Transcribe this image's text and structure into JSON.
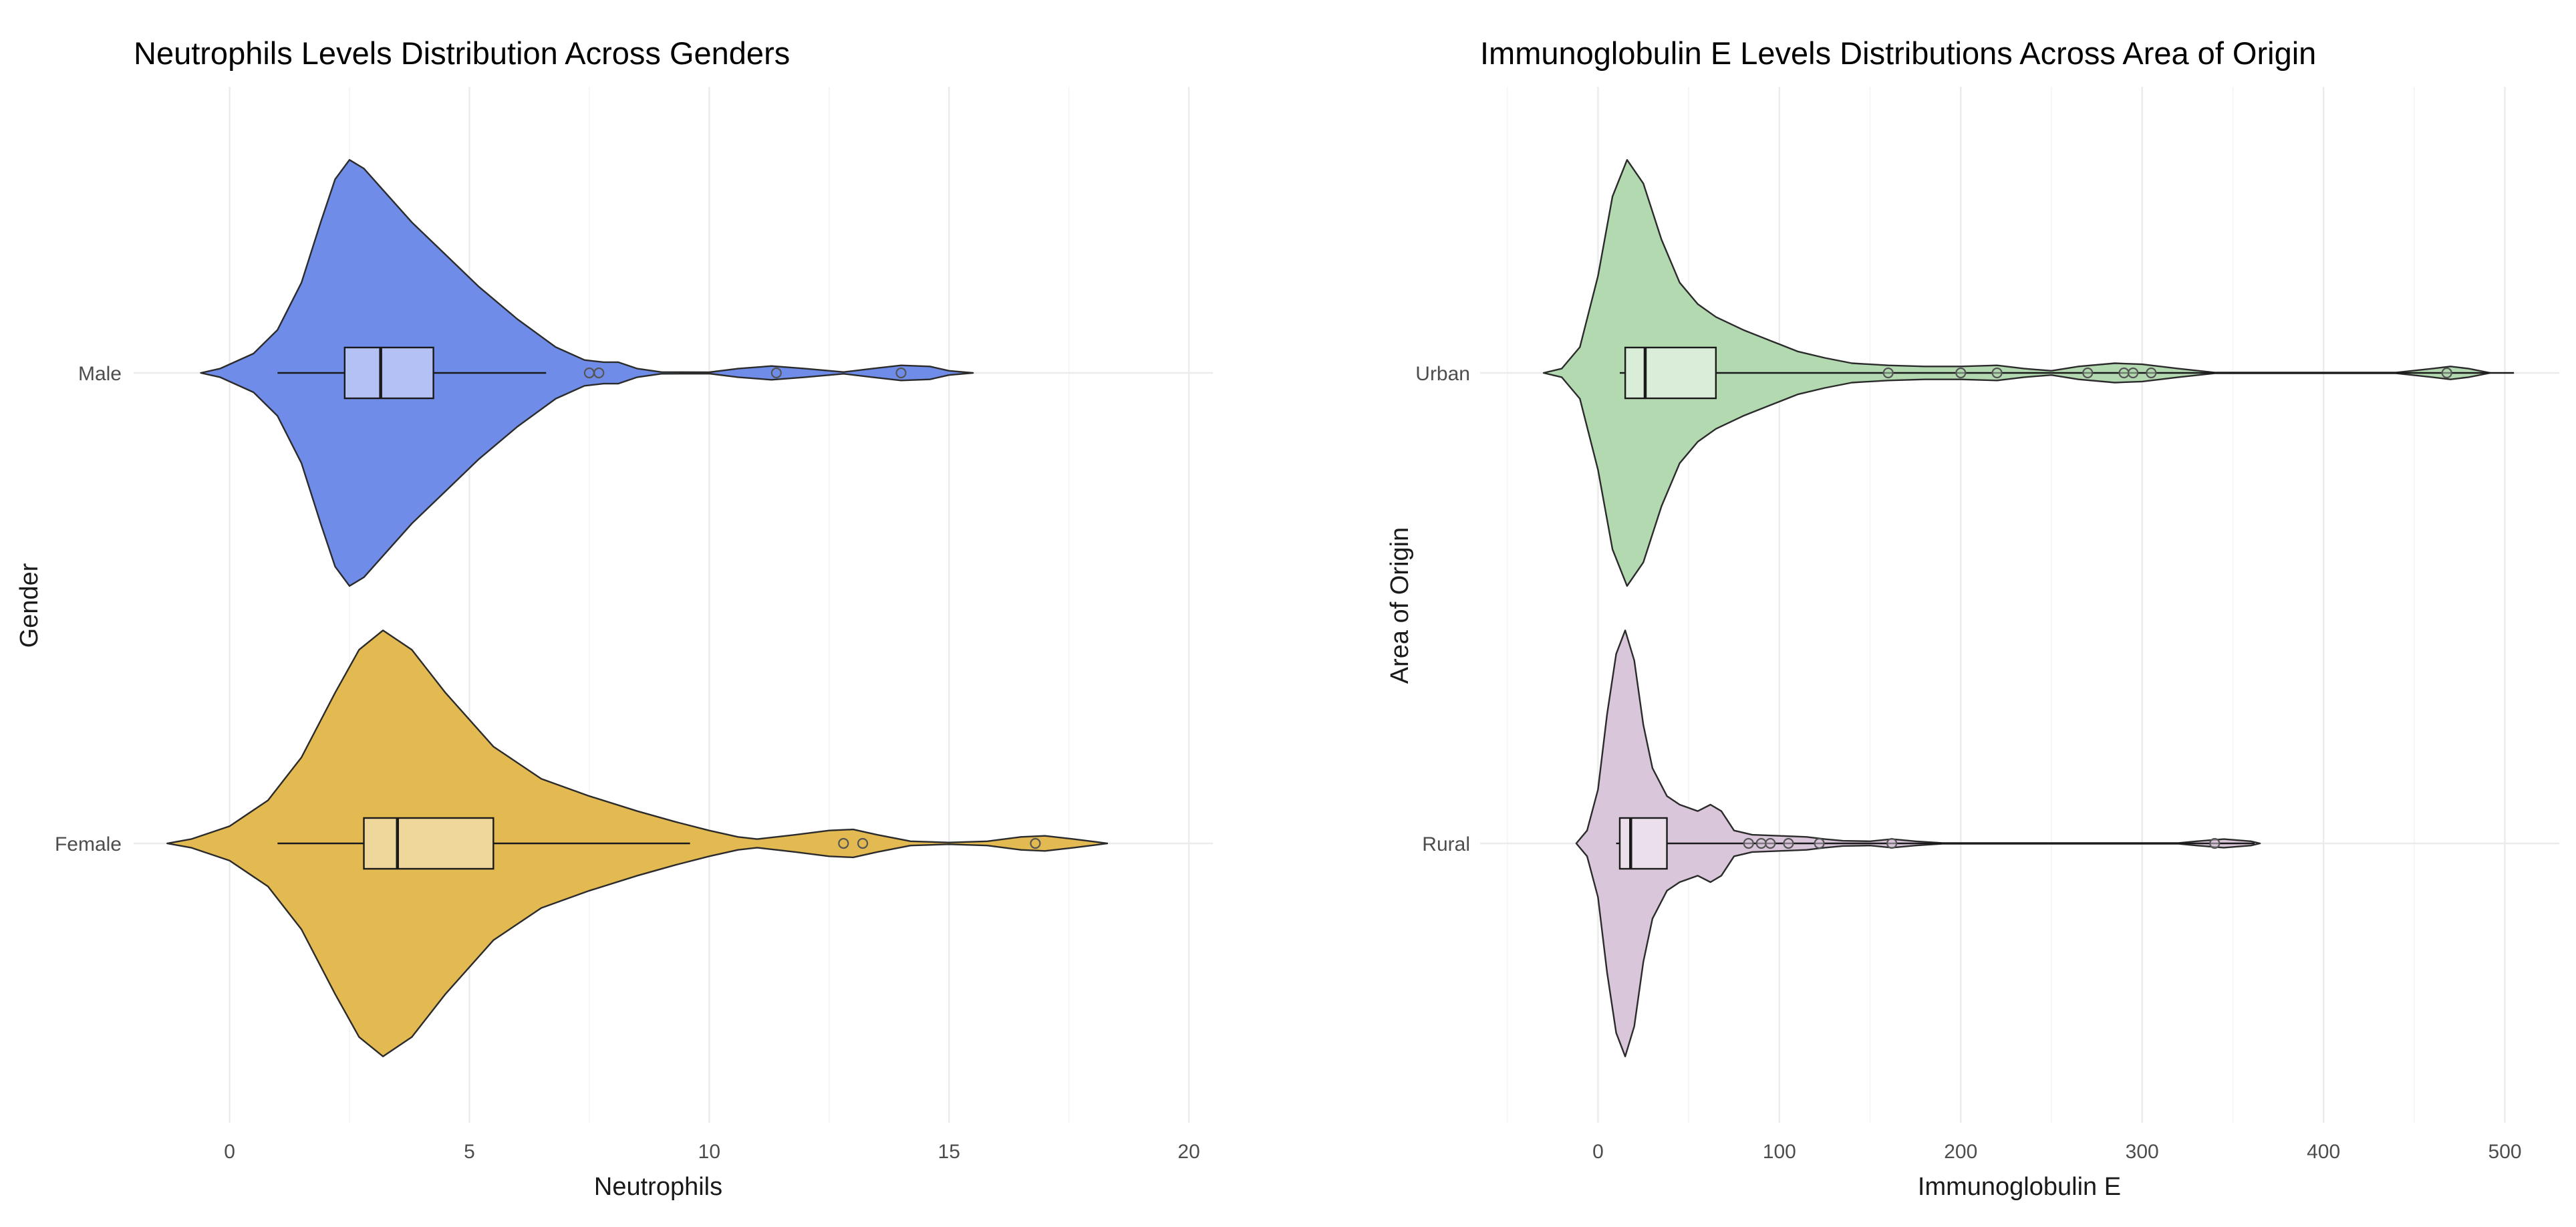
{
  "chart_data": [
    {
      "type": "violin",
      "title": "Neutrophils Levels Distribution Across Genders",
      "xlabel": "Neutrophils",
      "ylabel": "Gender",
      "xlim": [
        -2,
        20.5
      ],
      "x_ticks": [
        0,
        5,
        10,
        15,
        20
      ],
      "x_tick_labels": [
        "0",
        "5",
        "10",
        "15",
        "20"
      ],
      "categories": [
        "Male",
        "Female"
      ],
      "grid": true,
      "series": [
        {
          "name": "Male",
          "fill": "#6f8ce8",
          "box_fill": "#b3c1f4",
          "violin_outline": [
            [
              -0.6,
              0.0
            ],
            [
              -0.2,
              0.02
            ],
            [
              0.5,
              0.09
            ],
            [
              1.0,
              0.2
            ],
            [
              1.5,
              0.42
            ],
            [
              1.9,
              0.7
            ],
            [
              2.2,
              0.9
            ],
            [
              2.5,
              0.99
            ],
            [
              2.8,
              0.95
            ],
            [
              3.2,
              0.85
            ],
            [
              3.8,
              0.7
            ],
            [
              4.5,
              0.55
            ],
            [
              5.2,
              0.4
            ],
            [
              6.0,
              0.25
            ],
            [
              6.8,
              0.12
            ],
            [
              7.4,
              0.06
            ],
            [
              7.8,
              0.05
            ],
            [
              8.1,
              0.05
            ],
            [
              8.5,
              0.02
            ],
            [
              9.0,
              0.004
            ],
            [
              10.0,
              0.003
            ],
            [
              10.6,
              0.02
            ],
            [
              11.3,
              0.032
            ],
            [
              12.0,
              0.02
            ],
            [
              12.8,
              0.004
            ],
            [
              13.4,
              0.02
            ],
            [
              14.0,
              0.035
            ],
            [
              14.6,
              0.03
            ],
            [
              15.0,
              0.01
            ],
            [
              15.5,
              0.0
            ]
          ],
          "box": {
            "whisker_low": 1.0,
            "q1": 2.4,
            "median": 3.15,
            "q3": 4.25,
            "whisker_high": 6.6
          },
          "outliers": [
            7.5,
            7.7,
            11.4,
            14.0
          ]
        },
        {
          "name": "Female",
          "fill": "#e3ba52",
          "box_fill": "#efd79b",
          "violin_outline": [
            [
              -1.3,
              0.0
            ],
            [
              -0.8,
              0.02
            ],
            [
              0.0,
              0.08
            ],
            [
              0.8,
              0.2
            ],
            [
              1.5,
              0.4
            ],
            [
              2.2,
              0.7
            ],
            [
              2.7,
              0.9
            ],
            [
              3.2,
              0.99
            ],
            [
              3.8,
              0.9
            ],
            [
              4.5,
              0.7
            ],
            [
              5.5,
              0.45
            ],
            [
              6.5,
              0.3
            ],
            [
              7.5,
              0.22
            ],
            [
              8.5,
              0.15
            ],
            [
              9.3,
              0.1
            ],
            [
              10.0,
              0.06
            ],
            [
              10.6,
              0.03
            ],
            [
              11.0,
              0.02
            ],
            [
              11.8,
              0.04
            ],
            [
              12.5,
              0.06
            ],
            [
              13.0,
              0.065
            ],
            [
              13.5,
              0.04
            ],
            [
              14.2,
              0.01
            ],
            [
              15.0,
              0.004
            ],
            [
              15.8,
              0.01
            ],
            [
              16.5,
              0.03
            ],
            [
              17.0,
              0.035
            ],
            [
              17.6,
              0.02
            ],
            [
              18.1,
              0.006
            ],
            [
              18.3,
              0.0
            ]
          ],
          "box": {
            "whisker_low": 1.0,
            "q1": 2.8,
            "median": 3.5,
            "q3": 5.5,
            "whisker_high": 9.6
          },
          "outliers": [
            12.8,
            13.2,
            16.8
          ]
        }
      ]
    },
    {
      "type": "violin",
      "title": "Immunoglobulin E Levels Distributions Across Area of Origin",
      "xlabel": "Immunoglobulin E",
      "ylabel": "Area of Origin",
      "xlim": [
        -65,
        530
      ],
      "x_ticks": [
        0,
        100,
        200,
        300,
        400,
        500
      ],
      "x_tick_labels": [
        "0",
        "100",
        "200",
        "300",
        "400",
        "500"
      ],
      "categories": [
        "Urban",
        "Rural"
      ],
      "grid": true,
      "series": [
        {
          "name": "Urban",
          "fill": "#b3d9b1",
          "box_fill": "#d9edd8",
          "violin_outline": [
            [
              -30.0,
              0.0
            ],
            [
              -20.0,
              0.02
            ],
            [
              -10.0,
              0.12
            ],
            [
              0.0,
              0.45
            ],
            [
              8.0,
              0.82
            ],
            [
              16.0,
              0.99
            ],
            [
              25.0,
              0.88
            ],
            [
              35.0,
              0.62
            ],
            [
              45.0,
              0.42
            ],
            [
              55.0,
              0.32
            ],
            [
              65.0,
              0.26
            ],
            [
              80.0,
              0.2
            ],
            [
              95.0,
              0.15
            ],
            [
              110.0,
              0.1
            ],
            [
              125.0,
              0.07
            ],
            [
              140.0,
              0.045
            ],
            [
              160.0,
              0.035
            ],
            [
              180.0,
              0.03
            ],
            [
              200.0,
              0.03
            ],
            [
              220.0,
              0.035
            ],
            [
              235.0,
              0.02
            ],
            [
              250.0,
              0.01
            ],
            [
              265.0,
              0.03
            ],
            [
              285.0,
              0.045
            ],
            [
              300.0,
              0.04
            ],
            [
              320.0,
              0.02
            ],
            [
              340.0,
              0.002
            ],
            [
              440.0,
              0.002
            ],
            [
              460.0,
              0.02
            ],
            [
              470.0,
              0.03
            ],
            [
              480.0,
              0.02
            ],
            [
              492.0,
              0.0
            ]
          ],
          "box": {
            "whisker_low": 12,
            "q1": 15,
            "median": 26,
            "q3": 65,
            "whisker_high": 505
          },
          "outliers": [
            160,
            200,
            220,
            270,
            290,
            295,
            305,
            468
          ]
        },
        {
          "name": "Rural",
          "fill": "#d9c6da",
          "box_fill": "#ecdfec",
          "violin_outline": [
            [
              -12.0,
              0.0
            ],
            [
              -6.0,
              0.06
            ],
            [
              0.0,
              0.25
            ],
            [
              5.0,
              0.6
            ],
            [
              10.0,
              0.88
            ],
            [
              15.0,
              0.99
            ],
            [
              20.0,
              0.85
            ],
            [
              25.0,
              0.55
            ],
            [
              30.0,
              0.35
            ],
            [
              38.0,
              0.22
            ],
            [
              45.0,
              0.18
            ],
            [
              55.0,
              0.15
            ],
            [
              62.0,
              0.18
            ],
            [
              68.0,
              0.15
            ],
            [
              75.0,
              0.06
            ],
            [
              85.0,
              0.04
            ],
            [
              100.0,
              0.035
            ],
            [
              115.0,
              0.03
            ],
            [
              125.0,
              0.02
            ],
            [
              135.0,
              0.012
            ],
            [
              150.0,
              0.01
            ],
            [
              162.0,
              0.02
            ],
            [
              175.0,
              0.01
            ],
            [
              190.0,
              0.002
            ],
            [
              320.0,
              0.002
            ],
            [
              330.0,
              0.01
            ],
            [
              345.0,
              0.02
            ],
            [
              360.0,
              0.01
            ],
            [
              365.0,
              0.0
            ]
          ],
          "box": {
            "whisker_low": 10,
            "q1": 12,
            "median": 18,
            "q3": 38,
            "whisker_high": 362
          },
          "outliers": [
            83,
            90,
            95,
            105,
            122,
            162,
            340
          ]
        }
      ]
    }
  ]
}
